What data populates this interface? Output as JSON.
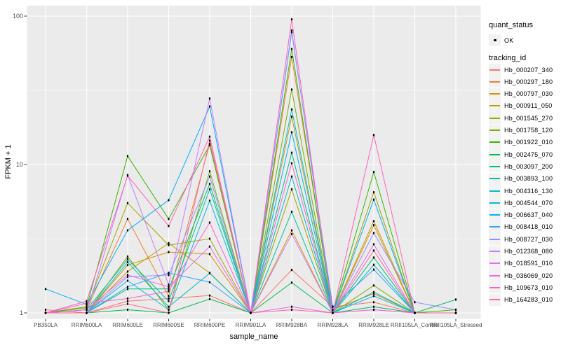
{
  "legend": {
    "quant_title": "quant_status",
    "quant_ok_label": "OK",
    "tracking_title": "tracking_id"
  },
  "chart_data": {
    "type": "line",
    "x_type": "categorical",
    "xlabel": "sample_name",
    "ylabel": "FPKM + 1",
    "y_scale": "log10",
    "y_ticks": [
      1,
      10,
      100
    ],
    "y_minor_ticks": [
      3.162,
      31.62
    ],
    "ylim": [
      0.92,
      118
    ],
    "grid": "white major+minor horizontal, white vertical at categories, on gray panel",
    "panel_bg": "#EBEBEB",
    "tick_label_color": "#4D4D4D",
    "point_color": "#000000",
    "point_status": "OK",
    "legend_position": "right",
    "categories": [
      "PB350LA",
      "RRIM600LA",
      "RRIM600LE",
      "RRIM600SE",
      "RRIM600PE",
      "RRIM901LA",
      "RRIM928BA",
      "RRIM928LA",
      "RRIM928LE",
      "RRII105LA_Control",
      "RRII105LA_Stressed"
    ],
    "series": [
      {
        "name": "Hb_000207_340",
        "color": "#F8766D",
        "values": [
          1.05,
          1.0,
          1.2,
          1.25,
          1.31,
          1.0,
          1.95,
          1.1,
          1.18,
          1.0,
          1.0
        ]
      },
      {
        "name": "Hb_000297_180",
        "color": "#EA8331",
        "values": [
          1.0,
          1.05,
          4.3,
          1.3,
          13.8,
          1.0,
          53,
          1.05,
          1.35,
          1.0,
          1.0
        ]
      },
      {
        "name": "Hb_000797_030",
        "color": "#D89000",
        "values": [
          1.0,
          1.0,
          2.1,
          2.57,
          2.49,
          1.0,
          3.6,
          1.0,
          3.9,
          1.0,
          1.0
        ]
      },
      {
        "name": "Hb_000911_050",
        "color": "#C09B00",
        "values": [
          1.0,
          1.0,
          1.9,
          2.95,
          1.86,
          1.0,
          21,
          1.0,
          4.15,
          1.0,
          1.0
        ]
      },
      {
        "name": "Hb_001545_270",
        "color": "#A3A500",
        "values": [
          1.0,
          1.08,
          5.5,
          2.86,
          3.16,
          1.0,
          6.8,
          1.0,
          6.5,
          1.0,
          1.0
        ]
      },
      {
        "name": "Hb_001758_120",
        "color": "#7CAE00",
        "values": [
          1.0,
          1.0,
          2.4,
          1.05,
          9.0,
          1.0,
          32,
          1.0,
          1.53,
          1.0,
          1.0
        ]
      },
      {
        "name": "Hb_001922_010",
        "color": "#39B600",
        "values": [
          1.0,
          1.1,
          11.4,
          4.3,
          13.5,
          1.0,
          60,
          1.0,
          8.9,
          1.0,
          1.05
        ]
      },
      {
        "name": "Hb_002475_070",
        "color": "#00BB4E",
        "values": [
          1.0,
          1.0,
          1.05,
          1.0,
          1.24,
          1.0,
          1.6,
          1.0,
          1.1,
          1.0,
          1.23
        ]
      },
      {
        "name": "Hb_003097_200",
        "color": "#00BF7D",
        "values": [
          1.0,
          1.0,
          1.45,
          1.45,
          7.4,
          1.0,
          12,
          1.0,
          2.36,
          1.0,
          1.0
        ]
      },
      {
        "name": "Hb_003893_100",
        "color": "#00C1A3",
        "values": [
          1.0,
          1.05,
          2.3,
          1.2,
          6.8,
          1.0,
          4.8,
          1.0,
          1.38,
          1.0,
          1.0
        ]
      },
      {
        "name": "Hb_004316_130",
        "color": "#00BFC4",
        "values": [
          1.0,
          1.0,
          2.2,
          1.1,
          1.85,
          1.0,
          8.3,
          1.0,
          2.11,
          1.0,
          1.0
        ]
      },
      {
        "name": "Hb_004544_070",
        "color": "#00BAE0",
        "values": [
          1.0,
          1.0,
          1.65,
          1.05,
          5.7,
          1.0,
          23.5,
          1.0,
          1.3,
          1.0,
          1.0
        ]
      },
      {
        "name": "Hb_006637_040",
        "color": "#00B0F6",
        "values": [
          1.45,
          1.14,
          3.6,
          5.75,
          24.6,
          1.0,
          16.5,
          1.0,
          5.8,
          1.0,
          1.0
        ]
      },
      {
        "name": "Hb_008418_010",
        "color": "#35A2FF",
        "values": [
          1.0,
          1.0,
          1.5,
          1.86,
          1.61,
          1.0,
          78,
          1.1,
          1.96,
          1.0,
          1.0
        ]
      },
      {
        "name": "Hb_008727_030",
        "color": "#9590FF",
        "values": [
          1.0,
          1.0,
          1.75,
          1.8,
          8.3,
          1.0,
          80,
          1.0,
          3.45,
          1.18,
          1.05
        ]
      },
      {
        "name": "Hb_012368_080",
        "color": "#C77CFF",
        "values": [
          1.0,
          1.0,
          8.5,
          1.55,
          27.8,
          1.0,
          3.4,
          1.0,
          1.05,
          1.0,
          1.0
        ]
      },
      {
        "name": "Hb_018591_010",
        "color": "#E76BF3",
        "values": [
          1.0,
          1.05,
          1.8,
          1.5,
          2.8,
          1.0,
          1.1,
          1.0,
          2.9,
          1.0,
          1.0
        ]
      },
      {
        "name": "Hb_036069_020",
        "color": "#FA62DB",
        "values": [
          1.0,
          1.16,
          1.25,
          1.4,
          4.06,
          1.0,
          10.2,
          1.0,
          1.05,
          1.0,
          1.0
        ]
      },
      {
        "name": "Hb_109673_010",
        "color": "#FF62BC",
        "values": [
          1.0,
          1.2,
          8.4,
          3.85,
          15.4,
          1.0,
          95,
          1.0,
          15.8,
          1.0,
          1.0
        ]
      },
      {
        "name": "Hb_164283_010",
        "color": "#FF6A98",
        "values": [
          1.0,
          1.0,
          1.15,
          1.0,
          14.5,
          1.0,
          1.05,
          1.0,
          2.63,
          1.0,
          1.0
        ]
      }
    ]
  }
}
